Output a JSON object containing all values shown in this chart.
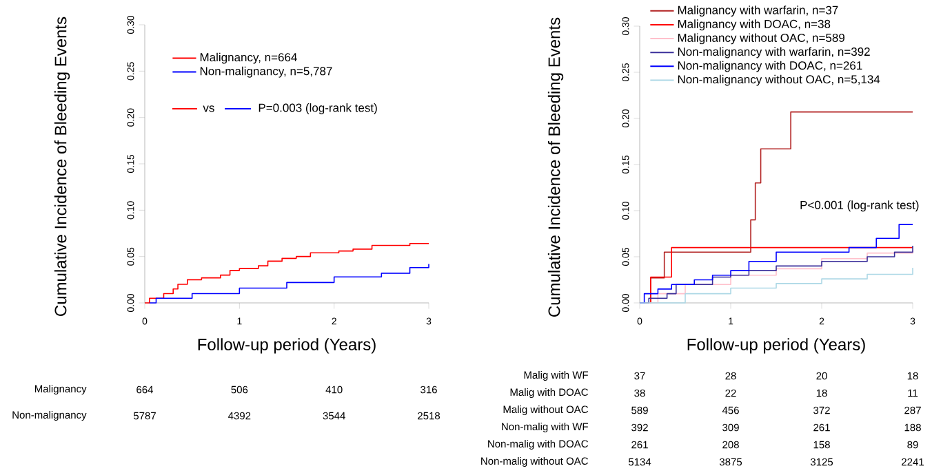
{
  "chart_data": [
    {
      "type": "step",
      "xlabel": "Follow-up period (Years)",
      "ylabel": "Cumulative Incidence of Bleeding Events",
      "xlim": [
        0,
        3
      ],
      "ylim": [
        0,
        0.3
      ],
      "xticks": [
        0,
        1,
        2,
        3
      ],
      "yticks": [
        {
          "value": 0,
          "label": "0.00"
        },
        {
          "value": 0.05,
          "label": "0.05"
        },
        {
          "value": 0.1,
          "label": "0.10"
        },
        {
          "value": 0.15,
          "label": "0.15"
        },
        {
          "value": 0.2,
          "label": "0.20"
        },
        {
          "value": 0.25,
          "label": "0.25"
        },
        {
          "value": 0.3,
          "label": "0.30"
        }
      ],
      "legend": "top",
      "grid": false,
      "series": [
        {
          "name": "Malignancy, n=664",
          "color": "#ff0000",
          "x": [
            0,
            0.05,
            0.2,
            0.3,
            0.35,
            0.45,
            0.6,
            0.8,
            0.9,
            1.0,
            1.2,
            1.3,
            1.45,
            1.6,
            1.75,
            2.05,
            2.2,
            2.4,
            2.8,
            3
          ],
          "values": [
            0,
            0.005,
            0.01,
            0.015,
            0.02,
            0.025,
            0.027,
            0.03,
            0.035,
            0.037,
            0.04,
            0.045,
            0.048,
            0.05,
            0.054,
            0.056,
            0.058,
            0.062,
            0.064,
            0.064
          ]
        },
        {
          "name": "Non-malignancy, n=5,787",
          "color": "#0000ff",
          "x": [
            0.05,
            0.12,
            0.5,
            1,
            1.5,
            2,
            2.5,
            2.8,
            3
          ],
          "values": [
            0,
            0.005,
            0.01,
            0.016,
            0.022,
            0.028,
            0.032,
            0.038,
            0.042
          ]
        }
      ],
      "annotations": [
        "vs",
        "P=0.003 (log-rank test)",
        "Malignancy",
        "664",
        "506",
        "410",
        "316",
        "Non-malignancy",
        "5787",
        "4392",
        "3544",
        "2518"
      ]
    },
    {
      "type": "step",
      "xlabel": "Follow-up period (Years)",
      "ylabel": "Cumulative Incidence of Bleeding Events",
      "xlim": [
        0,
        3
      ],
      "ylim": [
        0,
        0.3
      ],
      "xticks": [
        0,
        1,
        2,
        3
      ],
      "yticks": [
        {
          "value": 0,
          "label": "0.00"
        },
        {
          "value": 0.05,
          "label": "0.05"
        },
        {
          "value": 0.1,
          "label": "0.10"
        },
        {
          "value": 0.15,
          "label": "0.15"
        },
        {
          "value": 0.2,
          "label": "0.20"
        },
        {
          "value": 0.25,
          "label": "0.25"
        },
        {
          "value": 0.3,
          "label": "0.30"
        }
      ],
      "legend": "top",
      "grid": false,
      "series": [
        {
          "name": "Malignancy with warfarin, n=37",
          "color": "#b22222",
          "x": [
            0,
            0.12,
            0.27,
            1.22,
            1.27,
            1.33,
            1.66,
            3
          ],
          "values": [
            0,
            0.027,
            0.055,
            0.09,
            0.13,
            0.167,
            0.207,
            0.207
          ]
        },
        {
          "name": "Malignancy with DOAC, n=38",
          "color": "#ff0000",
          "x": [
            0,
            0.12,
            0.35,
            3
          ],
          "values": [
            0,
            0.028,
            0.06,
            0.06
          ]
        },
        {
          "name": "Malignancy without OAC, n=589",
          "color": "#ffc0cb",
          "x": [
            0,
            0.2,
            0.5,
            1,
            1.5,
            2,
            2.5,
            3
          ],
          "values": [
            0,
            0.01,
            0.02,
            0.03,
            0.037,
            0.048,
            0.054,
            0.057
          ]
        },
        {
          "name": "Non-malignancy with warfarin, n=392",
          "color": "#3a2f9a",
          "x": [
            0,
            0.1,
            0.3,
            0.4,
            0.8,
            1.0,
            1.2,
            1.5,
            2,
            2.5,
            2.8,
            3
          ],
          "values": [
            0,
            0.005,
            0.01,
            0.02,
            0.028,
            0.03,
            0.035,
            0.04,
            0.045,
            0.05,
            0.055,
            0.062
          ]
        },
        {
          "name": "Non-malignancy with DOAC, n=261",
          "color": "#0000ff",
          "x": [
            0,
            0.05,
            0.2,
            0.35,
            0.6,
            0.8,
            1.0,
            1.2,
            1.5,
            2.3,
            2.6,
            2.85,
            3
          ],
          "values": [
            0,
            0.01,
            0.015,
            0.02,
            0.025,
            0.03,
            0.035,
            0.045,
            0.055,
            0.06,
            0.07,
            0.085,
            0.085
          ]
        },
        {
          "name": "Non-malignancy without OAC, n=5,134",
          "color": "#add8e6",
          "x": [
            0,
            0.5,
            1,
            1.5,
            2,
            2.5,
            3
          ],
          "values": [
            0,
            0.01,
            0.016,
            0.021,
            0.026,
            0.031,
            0.038
          ]
        }
      ],
      "annotations": [
        "P<0.001 (log-rank test)",
        "Malig with WF",
        "37",
        "28",
        "20",
        "18",
        "Malig with DOAC",
        "38",
        "22",
        "18",
        "11",
        "Malig without OAC",
        "589",
        "456",
        "372",
        "287",
        "Non-malig with WF",
        "392",
        "309",
        "261",
        "188",
        "Non-malig with DOAC",
        "261",
        "208",
        "158",
        "89",
        "Non-malig without OAC",
        "5134",
        "3875",
        "3125",
        "2241"
      ]
    }
  ]
}
